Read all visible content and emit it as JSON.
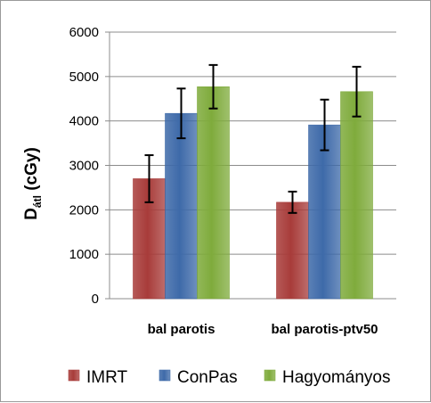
{
  "chart_data": {
    "type": "bar",
    "categories": [
      "bal parotis",
      "bal parotis-ptv50"
    ],
    "series": [
      {
        "name": "IMRT",
        "values": [
          2700,
          2170
        ],
        "errors": [
          530,
          240
        ],
        "color": "#a83c3a"
      },
      {
        "name": "ConPas",
        "values": [
          4170,
          3910
        ],
        "errors": [
          560,
          570
        ],
        "color": "#3e6aa9"
      },
      {
        "name": "Hagyományos",
        "values": [
          4770,
          4660
        ],
        "errors": [
          490,
          560
        ],
        "color": "#7fab3c"
      }
    ],
    "ylabel": "D",
    "ylabel_subscript": "átl",
    "ylabel_unit": "(cGy)",
    "ylim": [
      0,
      6000
    ],
    "yticks": [
      0,
      1000,
      2000,
      3000,
      4000,
      5000,
      6000
    ],
    "grid": true,
    "legend_position": "bottom"
  }
}
